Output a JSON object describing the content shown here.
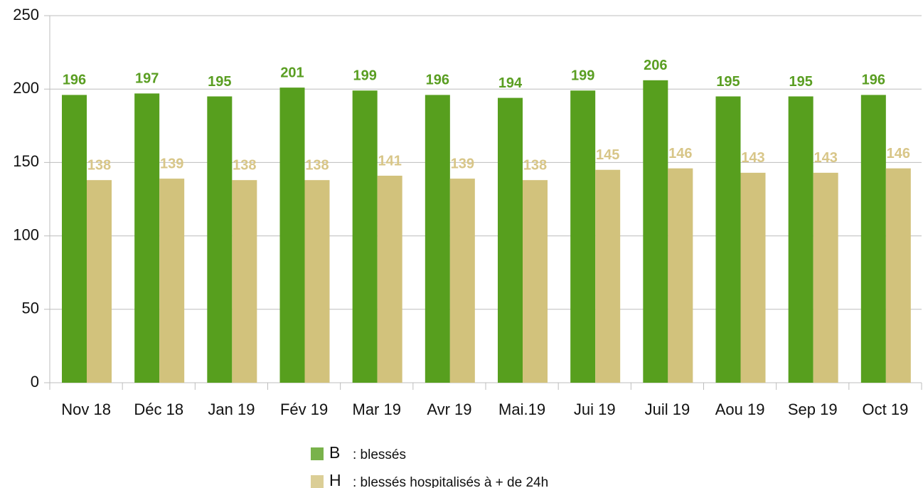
{
  "chart_data": {
    "type": "bar",
    "categories": [
      "Nov 18",
      "Déc 18",
      "Jan 19",
      "Fév 19",
      "Mar 19",
      "Avr 19",
      "Mai.19",
      "Jui 19",
      "Juil 19",
      "Aou 19",
      "Sep 19",
      "Oct 19"
    ],
    "series": [
      {
        "name": "B",
        "description": ": blessés",
        "color": "#579f1e",
        "label_color": "#5a9e22",
        "values": [
          196,
          197,
          195,
          201,
          199,
          196,
          194,
          199,
          206,
          195,
          195,
          196
        ]
      },
      {
        "name": "H",
        "description": ": blessés hospitalisés à + de 24h",
        "color": "#d2c27c",
        "label_color": "#d8c688",
        "values": [
          138,
          139,
          138,
          138,
          141,
          139,
          138,
          145,
          146,
          143,
          143,
          146
        ]
      }
    ],
    "ylim": [
      0,
      250
    ],
    "yticks": [
      0,
      50,
      100,
      150,
      200,
      250
    ],
    "grid": true
  }
}
